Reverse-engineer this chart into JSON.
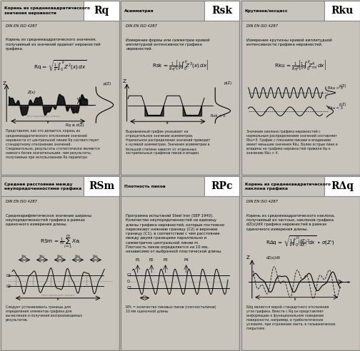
{
  "bg_color": "#c8c4bc",
  "panel_bg": "#f0ede8",
  "header_bg": "#d0cdc8",
  "panels": [
    {
      "label": "Корень из среднеквадратического\nзначения неровности",
      "symbol": "Rq",
      "standard": "DIN EN ISO 4287",
      "description": "Корень из среднеквадратического значения,\nполучаемый из значений ординат неровностей\nграфика.",
      "formula": "Rq = sqrt(1/lr * int Z^2(x) dx)",
      "footnote": "Представляя, как это делается, корень из\nсреднеквадратического отклонения значений\nнеровности от центральной линии Rq соответствует\nстандартному отклонению значений.\nСледовательно, результаты статистически являются\nнамного более значительными, чем результаты,\nполучаемые при использовании Ra параметра",
      "chart_type": "rq",
      "row": 0,
      "col": 0
    },
    {
      "label": "Асимметрия",
      "symbol": "Rsk",
      "standard": "DIN EN ISO 4287",
      "description": "Измерение формы или симметрии кривой\nамплитудной интенсивности графика\nнеровностей.",
      "formula": "Rsk = 1/Rq^3 * [1/lr * int Z^3(x) dx]",
      "footnote": "Выровненный график указывает на\nотрицательное значение асимметрии.\nНормальное распределение значений приводит\nк нулевой асимметрии. Значения асимметрии в\nбольшой степени зависят от отдельных\nэкстремальных графиков пиков и впадин.",
      "chart_type": "rsk",
      "row": 0,
      "col": 1
    },
    {
      "label": "Крутизна/эксцесс",
      "symbol": "Rku",
      "standard": "DIN EN ISO 4287",
      "description": "Измерение крутизны кривой амплитудной\nинтенсивности графика неровностей.",
      "formula": "Rku = 1/Rq^4 * [1/lr * int Z^4_mi dx]",
      "footnote": "Значение наклона графика неровностей с\nнормальным распределением значений составляет\nRku=3. График с плоскими пиками и впадинами\nимеет меньшие значения Rku. Более острые пики и\nвпадины на графике неровностей привели бы к\nзначению Rku > 4.",
      "chart_type": "rku",
      "row": 0,
      "col": 2
    },
    {
      "label": "Среднее расстояние между\nнеупорядоченностями графика",
      "symbol": "RSm",
      "standard": "DIN EN ISO 4287",
      "description": "Среднеарифметическое значение ширины\nнеупорядоченностей графика в рамках\nодиночного измерения длины.",
      "formula": "RSm = 1/m * sum Xa_i",
      "footnote": "Следует устанавливать границы для\nопределения элементов графика для\nвычисления и получения воспроизводимых\nрезультатов.",
      "chart_type": "rsm",
      "row": 1,
      "col": 0
    },
    {
      "label": "Плотность пиков",
      "symbol": "RPc",
      "standard": "",
      "description": "Программа испытаний Steel Iron (SEP 1940).\nКоличество неупорядоченностей на единицу\nдлины графика неровностей, которые постоянно\nпересекают нижнюю границу (C2) и верхнюю\nграницу (C1), в соответствии с чем расстояние\nмежду двумя границами параллельно и\nсимметрично центральной линии m.\nПлотность пиков определяется на 10 мм,\nнезависимо от выбранной пластической длины.",
      "formula": "",
      "footnote": "RPc = количество пиковых пиков (плотностьпиков)\n10 мм оценочной длины",
      "chart_type": "rpc",
      "row": 1,
      "col": 1
    },
    {
      "label": "Корень из среднеквадратического\nнаклона графика",
      "symbol": "RΔq",
      "standard": "DIN EN ISO 4287",
      "description": "Корень из среднеквадратического наклона,\nполучаемый из частных, наклонов графика\ndZ(x)/dX графика неровностей в рамках\nодиночного измерения длины.",
      "formula": "RDq = sqrt(1/lr * int (dZ/dX)^2 dx) * sigma(Z')",
      "footnote": "RΔq является мерой стандартного отклонения\nугла графика. Вместе с Rq он представляет\nинформацию о функциональном поведении\nповерхности, например, в трибологических\nусловиях, при отражении света, в гальванических\nпокрытиях.",
      "chart_type": "rdq",
      "row": 1,
      "col": 2
    }
  ]
}
